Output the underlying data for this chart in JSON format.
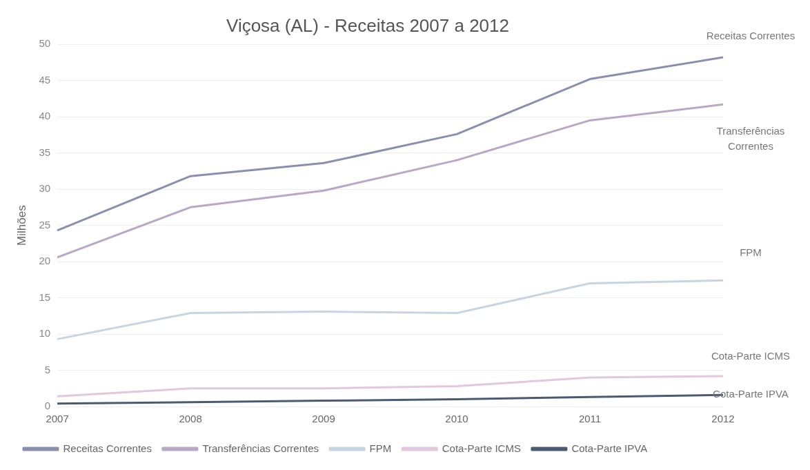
{
  "chart_data": {
    "type": "line",
    "title": "Viçosa (AL) - Receitas 2007 a 2012",
    "ylabel": "Milhões",
    "categories": [
      "2007",
      "2008",
      "2009",
      "2010",
      "2011",
      "2012"
    ],
    "series": [
      {
        "name": "Receitas Correntes",
        "color": "#8a8fb0",
        "values": [
          24.3,
          31.8,
          33.6,
          37.6,
          45.2,
          48.2
        ]
      },
      {
        "name": "Transferências Correntes",
        "color": "#b8a8c8",
        "values": [
          20.6,
          27.5,
          29.8,
          34.0,
          39.5,
          41.7
        ]
      },
      {
        "name": "FPM",
        "color": "#c8d4e0",
        "values": [
          9.3,
          12.9,
          13.1,
          12.9,
          17.0,
          17.4
        ]
      },
      {
        "name": "Cota-Parte ICMS",
        "color": "#e2c8dc",
        "values": [
          1.4,
          2.5,
          2.5,
          2.8,
          4.0,
          4.2
        ]
      },
      {
        "name": "Cota-Parte IPVA",
        "color": "#4a5a70",
        "values": [
          0.4,
          0.6,
          0.8,
          1.0,
          1.3,
          1.6
        ]
      }
    ],
    "ylim": [
      0,
      50
    ],
    "yticks": [
      0,
      5,
      10,
      15,
      20,
      25,
      30,
      35,
      40,
      45,
      50
    ],
    "grid": "y",
    "legend": "bottom",
    "marker": "none",
    "line_style": "solid"
  }
}
